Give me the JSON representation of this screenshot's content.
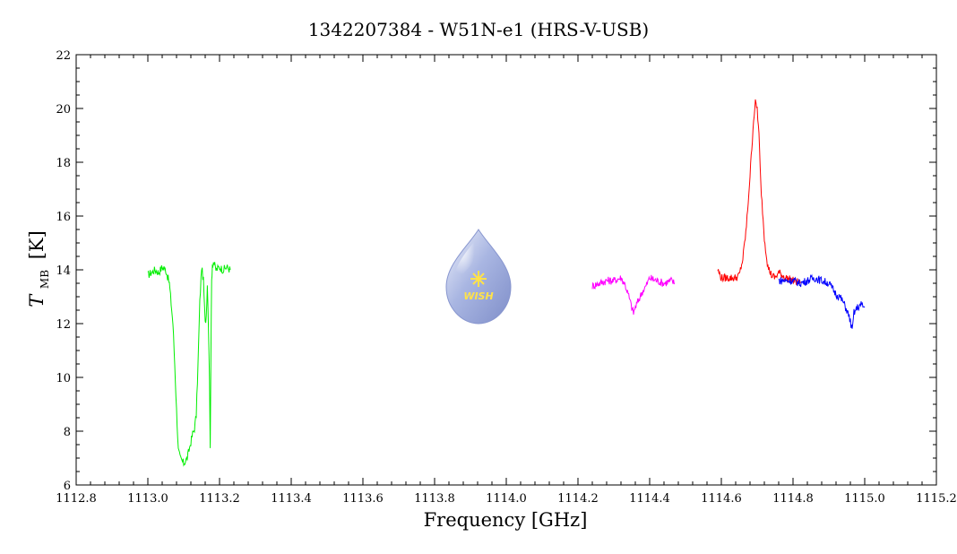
{
  "chart_data": {
    "type": "line",
    "title": "1342207384 - W51N-e1 (HRS-V-USB)",
    "xlabel": "Frequency [GHz]",
    "ylabel": {
      "main": "T",
      "sub": "MB",
      "unit": "[K]"
    },
    "xlim": [
      1112.8,
      1115.2
    ],
    "ylim": [
      6,
      22
    ],
    "xticks": [
      "1112.8",
      "1113.0",
      "1113.2",
      "1113.4",
      "1113.6",
      "1113.8",
      "1114.0",
      "1114.2",
      "1114.4",
      "1114.6",
      "1114.8",
      "1115.0",
      "1115.2"
    ],
    "yticks": [
      "6",
      "8",
      "10",
      "12",
      "14",
      "16",
      "18",
      "20",
      "22"
    ],
    "grid": false,
    "logo_text": "WISH",
    "series": [
      {
        "color": "#00ee00",
        "x": [
          1113.0,
          1113.01,
          1113.02,
          1113.03,
          1113.04,
          1113.05,
          1113.06,
          1113.07,
          1113.075,
          1113.08,
          1113.085,
          1113.09,
          1113.095,
          1113.1,
          1113.105,
          1113.11,
          1113.115,
          1113.12,
          1113.125,
          1113.13,
          1113.135,
          1113.14,
          1113.145,
          1113.15,
          1113.155,
          1113.16,
          1113.163,
          1113.166,
          1113.169,
          1113.172,
          1113.174,
          1113.176,
          1113.178,
          1113.18,
          1113.183,
          1113.19,
          1113.2,
          1113.21,
          1113.22,
          1113.23
        ],
        "y": [
          13.8,
          13.9,
          14.0,
          13.9,
          14.1,
          14.0,
          13.5,
          12.0,
          10.5,
          8.8,
          7.3,
          7.0,
          6.9,
          6.8,
          6.9,
          7.0,
          7.3,
          7.6,
          7.9,
          8.1,
          8.6,
          10.5,
          12.8,
          14.1,
          13.6,
          12.0,
          12.3,
          13.5,
          12.0,
          10.0,
          7.3,
          11.0,
          13.6,
          14.2,
          14.3,
          14.0,
          14.1,
          14.0,
          14.1,
          14.0
        ]
      },
      {
        "color": "#ff00ff",
        "x": [
          1114.24,
          1114.26,
          1114.28,
          1114.3,
          1114.32,
          1114.33,
          1114.34,
          1114.35,
          1114.355,
          1114.36,
          1114.37,
          1114.38,
          1114.39,
          1114.4,
          1114.42,
          1114.44,
          1114.46,
          1114.47
        ],
        "y": [
          13.4,
          13.5,
          13.6,
          13.6,
          13.7,
          13.5,
          13.1,
          12.6,
          12.4,
          12.6,
          12.9,
          13.2,
          13.4,
          13.7,
          13.6,
          13.5,
          13.6,
          13.5
        ]
      },
      {
        "color": "#ff0000",
        "x": [
          1114.59,
          1114.6,
          1114.62,
          1114.64,
          1114.65,
          1114.66,
          1114.67,
          1114.68,
          1114.69,
          1114.695,
          1114.7,
          1114.705,
          1114.71,
          1114.72,
          1114.73,
          1114.74,
          1114.75,
          1114.76,
          1114.78,
          1114.8,
          1114.82
        ],
        "y": [
          14.0,
          13.7,
          13.7,
          13.7,
          13.8,
          14.4,
          15.6,
          17.5,
          19.6,
          20.2,
          20.0,
          19.0,
          17.2,
          15.2,
          14.1,
          13.8,
          13.7,
          13.9,
          13.7,
          13.6,
          13.5
        ]
      },
      {
        "color": "#0000ff",
        "x": [
          1114.76,
          1114.78,
          1114.8,
          1114.82,
          1114.84,
          1114.86,
          1114.88,
          1114.9,
          1114.91,
          1114.92,
          1114.93,
          1114.94,
          1114.95,
          1114.96,
          1114.965,
          1114.97,
          1114.98,
          1114.99,
          1115.0
        ],
        "y": [
          13.6,
          13.6,
          13.6,
          13.5,
          13.6,
          13.7,
          13.6,
          13.5,
          13.3,
          13.1,
          13.0,
          12.8,
          12.5,
          12.1,
          11.7,
          12.4,
          12.6,
          12.7,
          12.6
        ]
      }
    ]
  }
}
